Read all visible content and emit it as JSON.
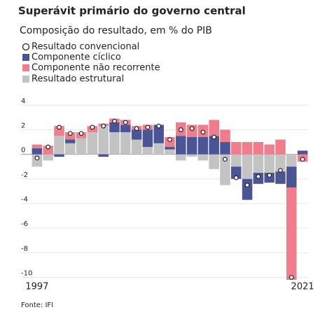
{
  "chart_data": {
    "type": "bar",
    "title": "Superávit primário do governo central",
    "subtitle": "Composição do resultado, em % do PIB",
    "source": "Fonte: IFI",
    "categories": [
      "1997",
      null,
      null,
      null,
      null,
      null,
      null,
      null,
      null,
      null,
      null,
      null,
      null,
      null,
      null,
      null,
      null,
      null,
      null,
      null,
      null,
      null,
      null,
      null,
      "2021"
    ],
    "series": [
      {
        "name": "Resultado estrutural",
        "color": "#c3c3c3",
        "values": [
          -1.0,
          -0.5,
          1.5,
          0.9,
          1.3,
          1.8,
          2.3,
          1.8,
          1.8,
          1.2,
          0.6,
          0.9,
          0.4,
          -0.5,
          -0.2,
          -0.5,
          -1.2,
          -2.5,
          -1.0,
          -2.0,
          -1.5,
          -1.5,
          -1.4,
          -1.0,
          0
        ]
      },
      {
        "name": "Componente cíclico",
        "color": "#4a5596",
        "values": [
          0.5,
          0,
          -0.2,
          0.3,
          0,
          0,
          -0.2,
          0.8,
          0.6,
          0.8,
          1.4,
          1.5,
          0.2,
          1.5,
          1.4,
          1.4,
          1.5,
          1.0,
          -1.0,
          -1.7,
          -0.9,
          -0.8,
          -1.0,
          -1.7,
          0.3
        ]
      },
      {
        "name": "Componente não recorrente",
        "color": "#f07c8c",
        "values": [
          0.3,
          0.7,
          0.8,
          0.6,
          0.5,
          0.5,
          0.2,
          0.3,
          0.4,
          0.3,
          0.4,
          0,
          0.8,
          1.1,
          1.0,
          1.0,
          1.3,
          1.0,
          1.0,
          1.0,
          1.0,
          0.8,
          1.2,
          -7.5,
          -0.6
        ]
      }
    ],
    "conventional": {
      "name": "Resultado convencional",
      "values": [
        -0.3,
        0.6,
        2.2,
        1.7,
        1.7,
        2.2,
        2.3,
        2.7,
        2.6,
        2.1,
        2.2,
        2.3,
        1.2,
        2.0,
        2.1,
        1.8,
        1.4,
        -0.4,
        -1.9,
        -2.5,
        -1.8,
        -1.7,
        -1.3,
        -10.0,
        -0.4
      ]
    },
    "ylim": [
      -10.2,
      4.3
    ],
    "yticks": [
      4,
      2,
      0,
      -2,
      -4,
      -6,
      -8,
      -10
    ],
    "grid": true
  }
}
